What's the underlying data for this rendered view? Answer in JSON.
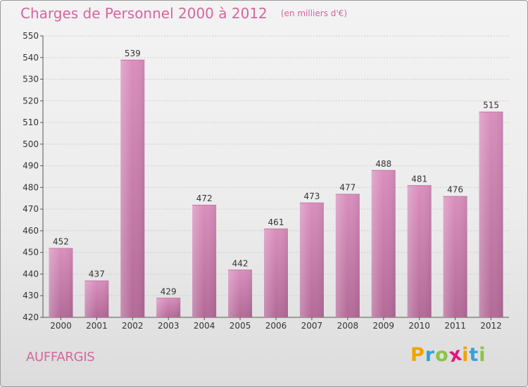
{
  "chart_data": {
    "type": "bar",
    "title": "Charges de Personnel 2000 à 2012",
    "subtitle": "(en milliers d'€)",
    "categories": [
      "2000",
      "2001",
      "2002",
      "2003",
      "2004",
      "2005",
      "2006",
      "2007",
      "2008",
      "2009",
      "2010",
      "2011",
      "2012"
    ],
    "values": [
      452,
      437,
      539,
      429,
      472,
      442,
      461,
      473,
      477,
      488,
      481,
      476,
      515
    ],
    "ylim": [
      420,
      550
    ],
    "yticks": [
      420,
      430,
      440,
      450,
      460,
      470,
      480,
      490,
      500,
      510,
      520,
      530,
      540,
      550
    ],
    "grid": true,
    "bar_color": "#d98fbd",
    "bar_color_dark": "#b46a98"
  },
  "location": "AUFFARGIS",
  "brand": {
    "letters": [
      "P",
      "r",
      "o",
      "x",
      "i",
      "t",
      "i"
    ],
    "colors": [
      "#f0a300",
      "#2ea4dc",
      "#8bc43f",
      "#e2167d",
      "#f0a300",
      "#2ea4dc",
      "#8bc43f"
    ]
  },
  "colors": {
    "accent": "#d466a0"
  }
}
